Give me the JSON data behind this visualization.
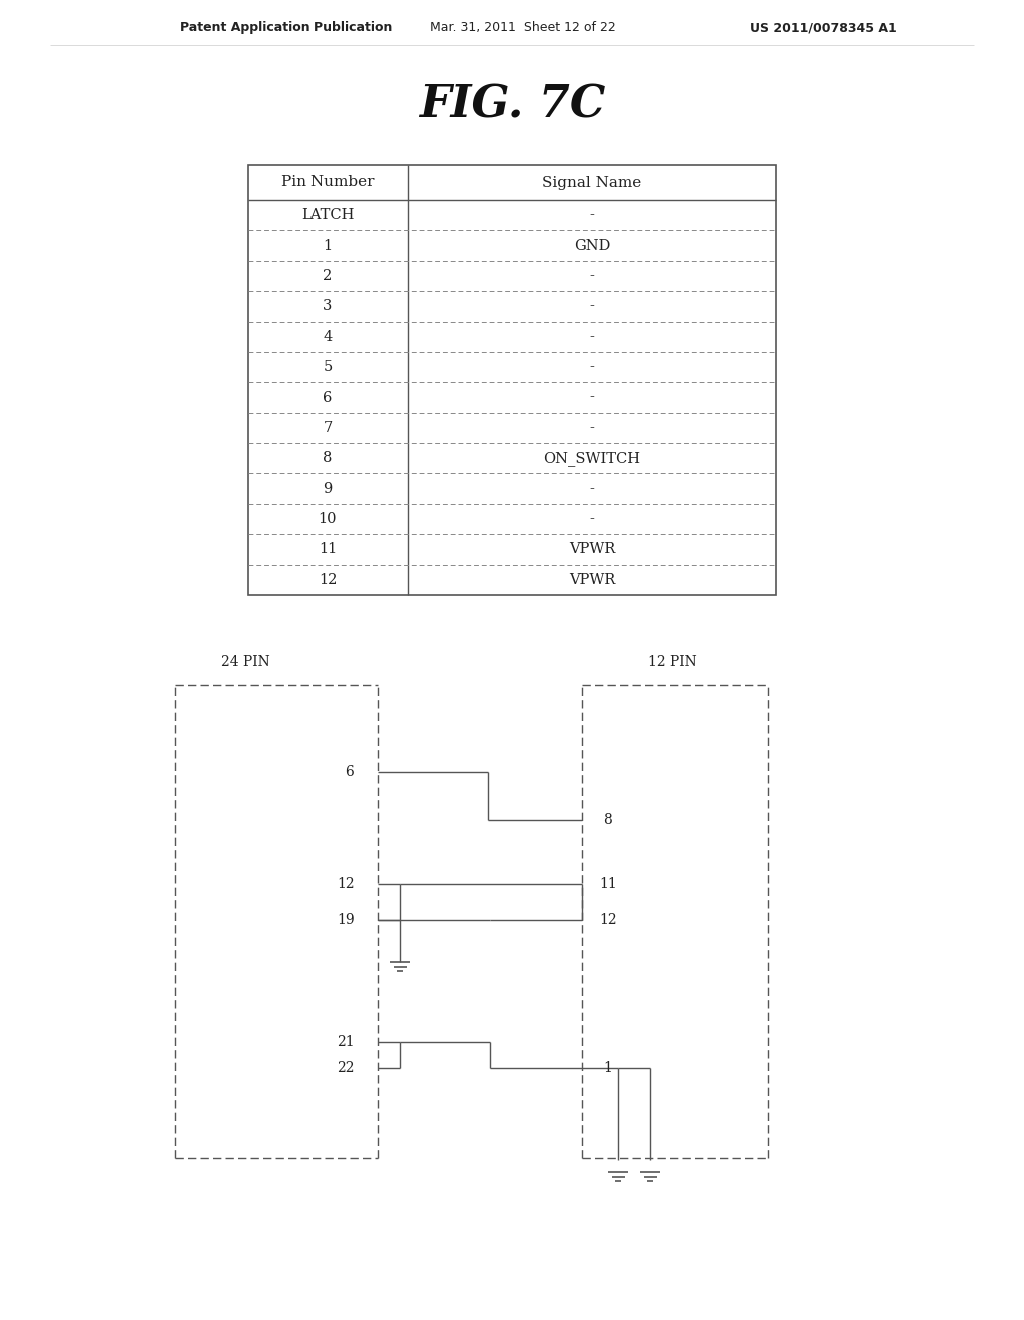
{
  "title": "FIG. 7C",
  "header_text_left": "Patent Application Publication",
  "header_text_mid": "Mar. 31, 2011  Sheet 12 of 22",
  "header_text_right": "US 2011/0078345 A1",
  "table": {
    "col1_header": "Pin Number",
    "col2_header": "Signal Name",
    "rows": [
      [
        "LATCH",
        "-"
      ],
      [
        "1",
        "GND"
      ],
      [
        "2",
        "-"
      ],
      [
        "3",
        "-"
      ],
      [
        "4",
        "-"
      ],
      [
        "5",
        "-"
      ],
      [
        "6",
        "-"
      ],
      [
        "7",
        "-"
      ],
      [
        "8",
        "ON_SWITCH"
      ],
      [
        "9",
        "-"
      ],
      [
        "10",
        "-"
      ],
      [
        "11",
        "VPWR"
      ],
      [
        "12",
        "VPWR"
      ]
    ]
  },
  "diagram": {
    "label_24pin": "24 PIN",
    "label_12pin": "12 PIN"
  },
  "bg_color": "#ffffff",
  "line_color": "#444444",
  "text_color": "#222222",
  "table_line_color": "#777777"
}
